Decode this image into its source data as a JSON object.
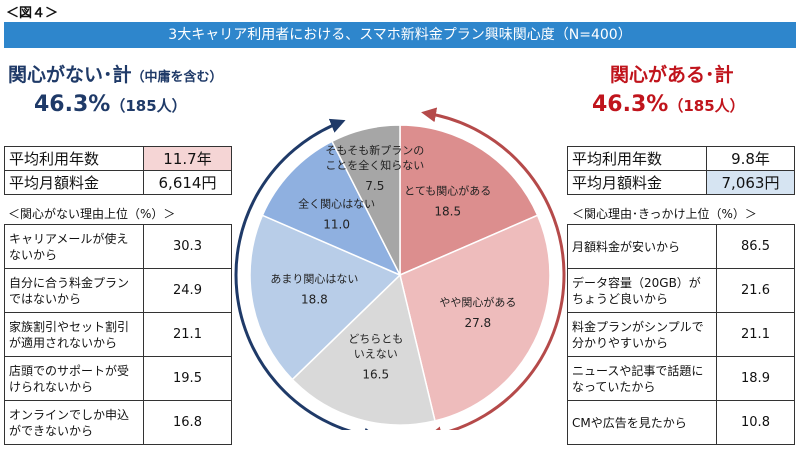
{
  "figure_label": "＜図４＞",
  "banner_title": "3大キャリア利用者における、スマホ新料金プラン興味関心度（N=400）",
  "left": {
    "title": "関心がない･計",
    "subtitle": "（中庸を含む）",
    "percent": "46.3%",
    "count": "（185人）",
    "stats": [
      {
        "label": "平均利用年数",
        "value": "11.7年"
      },
      {
        "label": "平均月額料金",
        "value": "6,614円"
      }
    ],
    "reasons_header": "＜関心がない理由上位（%）＞",
    "reasons": [
      {
        "label": "キャリアメールが使えないから",
        "value": "30.3"
      },
      {
        "label": "自分に合う料金プランではないから",
        "value": "24.9"
      },
      {
        "label": "家族割引やセット割引が適用されないから",
        "value": "21.1"
      },
      {
        "label": "店頭でのサポートが受けられないから",
        "value": "19.5"
      },
      {
        "label": "オンラインでしか申込ができないから",
        "value": "16.8"
      }
    ]
  },
  "right": {
    "title": "関心がある･計",
    "percent": "46.3%",
    "count": "（185人）",
    "stats": [
      {
        "label": "平均利用年数",
        "value": "9.8年"
      },
      {
        "label": "平均月額料金",
        "value": "7,063円"
      }
    ],
    "reasons_header": "＜関心理由･きっかけ上位（%）＞",
    "reasons": [
      {
        "label": "月額料金が安いから",
        "value": "86.5"
      },
      {
        "label": "データ容量（20GB）がちょうど良いから",
        "value": "21.6"
      },
      {
        "label": "料金プランがシンプルで分かりやすいから",
        "value": "21.1"
      },
      {
        "label": "ニュースや記事で話題になっていたから",
        "value": "18.9"
      },
      {
        "label": "CMや広告を見たから",
        "value": "10.8"
      }
    ]
  },
  "colors": {
    "banner": "#2e86cc",
    "left_text": "#1f3a68",
    "right_text": "#c0141c",
    "left_highlight": "#f5d5d5",
    "right_highlight": "#d6e4f2",
    "arrow_left": "#1f3a68",
    "arrow_right": "#b54a4a"
  },
  "chart_data": {
    "type": "pie",
    "slices": [
      {
        "label": "とても関心がある",
        "value": 18.5,
        "color": "#dc8e8e"
      },
      {
        "label": "やや関心がある",
        "value": 27.8,
        "color": "#eebcbc"
      },
      {
        "label": "どちらともいえない",
        "value": 16.5,
        "color": "#d9d9d9"
      },
      {
        "label": "あまり関心はない",
        "value": 18.8,
        "color": "#b8cde8"
      },
      {
        "label": "全く関心はない",
        "value": 11.0,
        "color": "#8fb0e0"
      },
      {
        "label": "そもそも新プランのことを全く知らない",
        "value": 7.5,
        "color": "#a6a6a6"
      }
    ]
  }
}
